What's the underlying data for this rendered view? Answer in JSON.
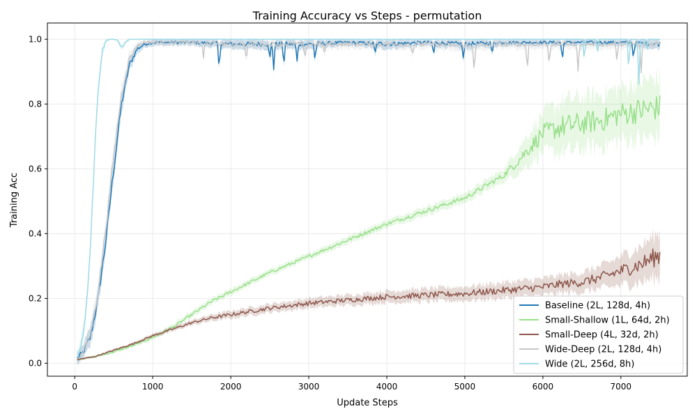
{
  "chart_data": {
    "type": "line",
    "title": "Training Accuracy vs Steps - permutation",
    "xlabel": "Update Steps",
    "ylabel": "Training Acc",
    "xlim": [
      -350,
      7850
    ],
    "ylim": [
      -0.04,
      1.05
    ],
    "xticks": [
      0,
      1000,
      2000,
      3000,
      4000,
      5000,
      6000,
      7000
    ],
    "yticks": [
      0.0,
      0.2,
      0.4,
      0.6,
      0.8,
      1.0
    ],
    "xtick_labels": [
      "0",
      "1000",
      "2000",
      "3000",
      "4000",
      "5000",
      "6000",
      "7000"
    ],
    "ytick_labels": [
      "0.0",
      "0.2",
      "0.4",
      "0.6",
      "0.8",
      "1.0"
    ],
    "grid": true,
    "legend_position": "lower-right",
    "series": [
      {
        "name": "Baseline (2L, 128d, 4h)",
        "color": "#1f77b4",
        "x": [
          0,
          100,
          200,
          300,
          400,
          500,
          600,
          700,
          800,
          900,
          1000,
          1500,
          2000,
          2500,
          3000,
          3500,
          4000,
          4500,
          5000,
          5500,
          6000,
          6500,
          7000,
          7500
        ],
        "y": [
          0.01,
          0.03,
          0.08,
          0.2,
          0.38,
          0.6,
          0.8,
          0.92,
          0.97,
          0.985,
          0.99,
          0.99,
          0.985,
          0.985,
          0.985,
          0.99,
          0.985,
          0.99,
          0.985,
          0.99,
          0.99,
          0.99,
          0.99,
          0.985
        ],
        "band": [
          0.02,
          0.02,
          0.03,
          0.03,
          0.03,
          0.03,
          0.03,
          0.02,
          0.015,
          0.01,
          0.01,
          0.01,
          0.015,
          0.015,
          0.015,
          0.01,
          0.015,
          0.01,
          0.015,
          0.01,
          0.01,
          0.01,
          0.01,
          0.015
        ],
        "dips": [
          [
            1850,
            0.9
          ],
          [
            2500,
            0.93
          ],
          [
            2550,
            0.91
          ],
          [
            2680,
            0.92
          ],
          [
            2850,
            0.93
          ],
          [
            3080,
            0.93
          ],
          [
            3850,
            0.95
          ],
          [
            4600,
            0.95
          ],
          [
            4980,
            0.94
          ],
          [
            5350,
            0.95
          ],
          [
            6250,
            0.93
          ],
          [
            7160,
            0.94
          ]
        ]
      },
      {
        "name": "Small-Shallow (1L, 64d, 2h)",
        "color": "#98df8a",
        "x": [
          0,
          250,
          500,
          750,
          1000,
          1250,
          1500,
          1750,
          2000,
          2500,
          3000,
          3500,
          4000,
          4500,
          5000,
          5500,
          5700,
          6000,
          6250,
          6500,
          6750,
          7000,
          7250,
          7500
        ],
        "y": [
          0.01,
          0.02,
          0.035,
          0.055,
          0.08,
          0.11,
          0.15,
          0.19,
          0.22,
          0.28,
          0.33,
          0.38,
          0.43,
          0.47,
          0.51,
          0.58,
          0.63,
          0.71,
          0.73,
          0.74,
          0.75,
          0.77,
          0.78,
          0.79
        ],
        "band": [
          0.003,
          0.004,
          0.005,
          0.006,
          0.008,
          0.009,
          0.01,
          0.01,
          0.01,
          0.01,
          0.01,
          0.012,
          0.012,
          0.014,
          0.015,
          0.02,
          0.04,
          0.06,
          0.08,
          0.08,
          0.08,
          0.08,
          0.09,
          0.09
        ]
      },
      {
        "name": "Small-Deep (4L, 32d, 2h)",
        "color": "#8c564b",
        "x": [
          0,
          250,
          500,
          750,
          1000,
          1250,
          1500,
          1750,
          2000,
          2500,
          3000,
          3500,
          4000,
          4500,
          5000,
          5500,
          6000,
          6250,
          6500,
          6750,
          7000,
          7250,
          7500
        ],
        "y": [
          0.01,
          0.02,
          0.04,
          0.06,
          0.085,
          0.105,
          0.125,
          0.14,
          0.15,
          0.17,
          0.185,
          0.195,
          0.205,
          0.21,
          0.215,
          0.225,
          0.235,
          0.245,
          0.25,
          0.265,
          0.285,
          0.305,
          0.335
        ],
        "band": [
          0.003,
          0.003,
          0.004,
          0.005,
          0.006,
          0.007,
          0.008,
          0.01,
          0.012,
          0.013,
          0.015,
          0.016,
          0.018,
          0.02,
          0.022,
          0.024,
          0.026,
          0.028,
          0.03,
          0.035,
          0.045,
          0.055,
          0.07
        ]
      },
      {
        "name": "Wide-Deep (2L, 128d, 4h)",
        "color": "#c7c7c7",
        "x": [
          0,
          100,
          200,
          300,
          400,
          500,
          600,
          700,
          800,
          900,
          1000,
          1500,
          2000,
          2500,
          3000,
          3500,
          4000,
          4500,
          5000,
          5500,
          6000,
          6500,
          7000,
          7500
        ],
        "y": [
          0.01,
          0.03,
          0.09,
          0.22,
          0.42,
          0.64,
          0.83,
          0.94,
          0.98,
          0.99,
          0.99,
          0.99,
          0.985,
          0.985,
          0.985,
          0.985,
          0.985,
          0.985,
          0.98,
          0.985,
          0.985,
          0.985,
          0.985,
          0.985
        ],
        "band": [
          0.02,
          0.02,
          0.03,
          0.03,
          0.03,
          0.03,
          0.03,
          0.02,
          0.01,
          0.01,
          0.01,
          0.01,
          0.015,
          0.015,
          0.015,
          0.015,
          0.015,
          0.015,
          0.02,
          0.015,
          0.015,
          0.015,
          0.015,
          0.015
        ],
        "dips": [
          [
            1650,
            0.94
          ],
          [
            2200,
            0.93
          ],
          [
            2950,
            0.93
          ],
          [
            3200,
            0.95
          ],
          [
            4330,
            0.95
          ],
          [
            5120,
            0.9
          ],
          [
            5800,
            0.9
          ],
          [
            6080,
            0.92
          ],
          [
            6450,
            0.9
          ],
          [
            6950,
            0.93
          ],
          [
            7260,
            0.9
          ]
        ]
      },
      {
        "name": "Wide (2L, 256d, 8h)",
        "color": "#9edae5",
        "x": [
          0,
          50,
          100,
          150,
          200,
          250,
          300,
          350,
          400,
          450,
          500,
          550,
          600,
          650,
          700,
          750,
          800,
          1000,
          1500,
          2000,
          2500,
          3000,
          3500,
          4000,
          4500,
          5000,
          5500,
          6000,
          6500,
          7000,
          7500
        ],
        "y": [
          0.01,
          0.03,
          0.08,
          0.18,
          0.36,
          0.62,
          0.85,
          0.96,
          0.995,
          1.0,
          1.0,
          0.995,
          0.975,
          0.99,
          1.0,
          1.0,
          1.0,
          1.0,
          1.0,
          1.0,
          1.0,
          1.0,
          1.0,
          1.0,
          1.0,
          1.0,
          1.0,
          1.0,
          1.0,
          1.0,
          1.0
        ],
        "band": [
          0.02,
          0.02,
          0.03,
          0.03,
          0.03,
          0.03,
          0.03,
          0.02,
          0.005,
          0.002,
          0.002,
          0.005,
          0.01,
          0.005,
          0.002,
          0.002,
          0.002,
          0.002,
          0.002,
          0.002,
          0.002,
          0.002,
          0.002,
          0.002,
          0.002,
          0.002,
          0.002,
          0.002,
          0.002,
          0.002,
          0.002
        ],
        "dips": [
          [
            6530,
            0.93
          ],
          [
            6700,
            0.95
          ],
          [
            7100,
            0.9
          ],
          [
            7230,
            0.86
          ],
          [
            7330,
            0.96
          ]
        ]
      }
    ]
  }
}
